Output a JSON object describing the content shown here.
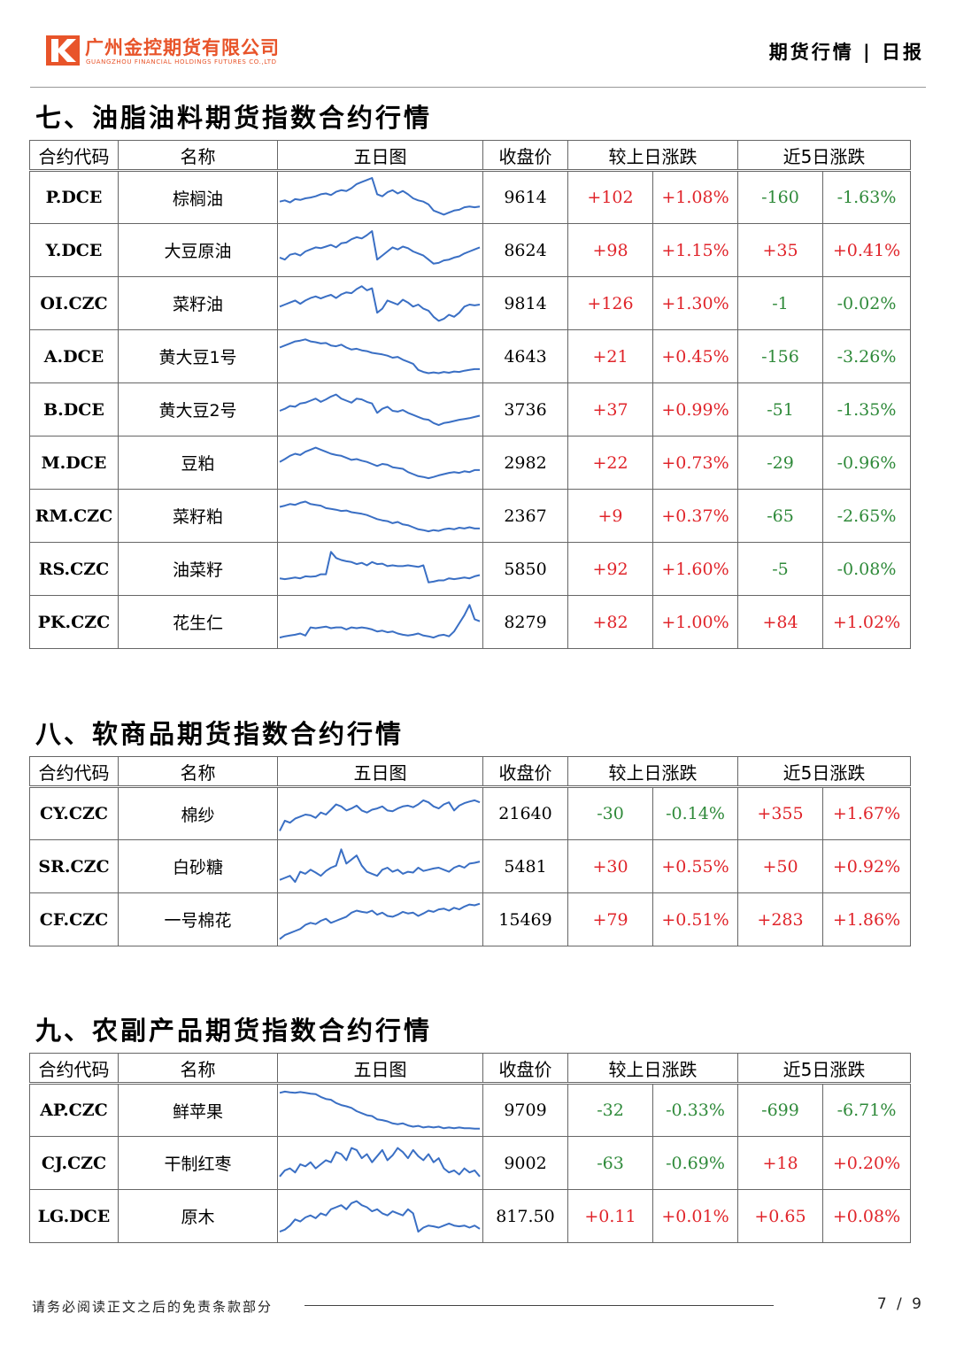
{
  "header": {
    "company_cn": "广州金控期货有限公司",
    "company_en": "GUANGZHOU FINANCIAL HOLDINGS FUTURES CO.,LTD",
    "doc_type": "期货行情 | 日报"
  },
  "columns": {
    "code": "合约代码",
    "name": "名称",
    "chart": "五日图",
    "close": "收盘价",
    "day_change": "较上日涨跌",
    "five_day_change": "近5日涨跌"
  },
  "sections": [
    {
      "title": "七、油脂油料期货指数合约行情",
      "rows": [
        {
          "code": "P.DCE",
          "name": "棕榈油",
          "close": "9614",
          "chg": "+102",
          "chg_pct": "+1.08%",
          "chg5": "-160",
          "chg5_pct": "-1.63%",
          "spark": [
            0.42,
            0.45,
            0.4,
            0.48,
            0.46,
            0.5,
            0.52,
            0.55,
            0.6,
            0.62,
            0.58,
            0.66,
            0.7,
            0.68,
            0.75,
            0.85,
            0.9,
            0.95,
            1.0,
            0.6,
            0.55,
            0.65,
            0.7,
            0.62,
            0.68,
            0.6,
            0.5,
            0.45,
            0.42,
            0.35,
            0.2,
            0.15,
            0.1,
            0.15,
            0.2,
            0.22,
            0.28,
            0.3,
            0.28,
            0.3
          ]
        },
        {
          "code": "Y.DCE",
          "name": "大豆原油",
          "close": "8624",
          "chg": "+98",
          "chg_pct": "+1.15%",
          "chg5": "+35",
          "chg5_pct": "+0.41%",
          "spark": [
            0.35,
            0.3,
            0.42,
            0.45,
            0.4,
            0.5,
            0.55,
            0.6,
            0.58,
            0.62,
            0.66,
            0.6,
            0.7,
            0.72,
            0.8,
            0.85,
            0.82,
            0.9,
            1.0,
            0.3,
            0.4,
            0.5,
            0.6,
            0.55,
            0.62,
            0.58,
            0.5,
            0.45,
            0.4,
            0.3,
            0.2,
            0.22,
            0.28,
            0.3,
            0.35,
            0.38,
            0.45,
            0.5,
            0.55,
            0.6
          ]
        },
        {
          "code": "OI.CZC",
          "name": "菜籽油",
          "close": "9814",
          "chg": "+126",
          "chg_pct": "+1.30%",
          "chg5": "-1",
          "chg5_pct": "-0.02%",
          "spark": [
            0.45,
            0.5,
            0.55,
            0.6,
            0.52,
            0.6,
            0.66,
            0.7,
            0.65,
            0.7,
            0.74,
            0.66,
            0.75,
            0.8,
            0.78,
            0.88,
            0.95,
            0.85,
            0.9,
            0.3,
            0.4,
            0.6,
            0.55,
            0.5,
            0.62,
            0.55,
            0.45,
            0.5,
            0.4,
            0.35,
            0.2,
            0.1,
            0.15,
            0.25,
            0.2,
            0.3,
            0.45,
            0.5,
            0.48,
            0.5
          ]
        },
        {
          "code": "A.DCE",
          "name": "黄大豆1号",
          "close": "4643",
          "chg": "+21",
          "chg_pct": "+0.45%",
          "chg5": "-156",
          "chg5_pct": "-3.26%",
          "spark": [
            0.75,
            0.8,
            0.85,
            0.9,
            0.92,
            0.95,
            0.9,
            0.88,
            0.85,
            0.86,
            0.8,
            0.78,
            0.82,
            0.75,
            0.7,
            0.72,
            0.68,
            0.66,
            0.62,
            0.6,
            0.58,
            0.55,
            0.5,
            0.52,
            0.45,
            0.4,
            0.35,
            0.2,
            0.15,
            0.12,
            0.14,
            0.12,
            0.15,
            0.13,
            0.16,
            0.15,
            0.18,
            0.2,
            0.22,
            0.22
          ]
        },
        {
          "code": "B.DCE",
          "name": "黄大豆2号",
          "close": "3736",
          "chg": "+37",
          "chg_pct": "+0.99%",
          "chg5": "-51",
          "chg5_pct": "-1.35%",
          "spark": [
            0.5,
            0.55,
            0.62,
            0.6,
            0.68,
            0.7,
            0.75,
            0.8,
            0.72,
            0.78,
            0.85,
            0.9,
            0.8,
            0.75,
            0.7,
            0.8,
            0.78,
            0.72,
            0.68,
            0.45,
            0.55,
            0.6,
            0.5,
            0.48,
            0.52,
            0.45,
            0.4,
            0.35,
            0.3,
            0.28,
            0.2,
            0.15,
            0.2,
            0.22,
            0.25,
            0.28,
            0.3,
            0.32,
            0.35,
            0.38
          ]
        },
        {
          "code": "M.DCE",
          "name": "豆粕",
          "close": "2982",
          "chg": "+22",
          "chg_pct": "+0.73%",
          "chg5": "-29",
          "chg5_pct": "-0.96%",
          "spark": [
            0.55,
            0.62,
            0.7,
            0.75,
            0.72,
            0.8,
            0.85,
            0.9,
            0.85,
            0.8,
            0.75,
            0.72,
            0.7,
            0.65,
            0.6,
            0.62,
            0.58,
            0.55,
            0.5,
            0.45,
            0.5,
            0.48,
            0.42,
            0.4,
            0.38,
            0.3,
            0.25,
            0.2,
            0.18,
            0.15,
            0.18,
            0.22,
            0.25,
            0.28,
            0.3,
            0.28,
            0.32,
            0.3,
            0.35,
            0.35
          ]
        },
        {
          "code": "RM.CZC",
          "name": "菜籽粕",
          "close": "2367",
          "chg": "+9",
          "chg_pct": "+0.37%",
          "chg5": "-65",
          "chg5_pct": "-2.65%",
          "spark": [
            0.75,
            0.78,
            0.82,
            0.8,
            0.85,
            0.88,
            0.82,
            0.8,
            0.78,
            0.72,
            0.7,
            0.68,
            0.65,
            0.66,
            0.62,
            0.6,
            0.58,
            0.55,
            0.5,
            0.45,
            0.42,
            0.4,
            0.35,
            0.38,
            0.32,
            0.3,
            0.25,
            0.2,
            0.18,
            0.15,
            0.18,
            0.16,
            0.2,
            0.22,
            0.2,
            0.24,
            0.22,
            0.25,
            0.22,
            0.22
          ]
        },
        {
          "code": "RS.CZC",
          "name": "油菜籽",
          "close": "5850",
          "chg": "+92",
          "chg_pct": "+1.60%",
          "chg5": "-5",
          "chg5_pct": "-0.08%",
          "spark": [
            0.3,
            0.28,
            0.3,
            0.32,
            0.3,
            0.35,
            0.34,
            0.35,
            0.4,
            0.4,
            0.95,
            0.8,
            0.75,
            0.72,
            0.7,
            0.65,
            0.68,
            0.62,
            0.7,
            0.65,
            0.66,
            0.6,
            0.62,
            0.6,
            0.6,
            0.62,
            0.6,
            0.58,
            0.62,
            0.2,
            0.22,
            0.25,
            0.25,
            0.3,
            0.28,
            0.3,
            0.32,
            0.3,
            0.35,
            0.38
          ]
        },
        {
          "code": "PK.CZC",
          "name": "花生仁",
          "close": "8279",
          "chg": "+82",
          "chg_pct": "+1.00%",
          "chg5": "+84",
          "chg5_pct": "+1.02%",
          "spark": [
            0.15,
            0.18,
            0.2,
            0.22,
            0.25,
            0.2,
            0.4,
            0.38,
            0.4,
            0.42,
            0.38,
            0.4,
            0.4,
            0.35,
            0.4,
            0.38,
            0.4,
            0.38,
            0.35,
            0.3,
            0.32,
            0.28,
            0.3,
            0.25,
            0.22,
            0.2,
            0.22,
            0.25,
            0.2,
            0.18,
            0.15,
            0.2,
            0.22,
            0.18,
            0.3,
            0.5,
            0.7,
            0.95,
            0.6,
            0.55
          ]
        }
      ]
    },
    {
      "title": "八、软商品期货指数合约行情",
      "rows": [
        {
          "code": "CY.CZC",
          "name": "棉纱",
          "close": "21640",
          "chg": "-30",
          "chg_pct": "-0.14%",
          "chg5": "+355",
          "chg5_pct": "+1.67%",
          "spark": [
            0.1,
            0.35,
            0.3,
            0.4,
            0.45,
            0.5,
            0.48,
            0.42,
            0.55,
            0.5,
            0.62,
            0.75,
            0.7,
            0.6,
            0.65,
            0.72,
            0.6,
            0.55,
            0.62,
            0.65,
            0.7,
            0.6,
            0.58,
            0.65,
            0.7,
            0.72,
            0.68,
            0.75,
            0.85,
            0.8,
            0.7,
            0.65,
            0.75,
            0.8,
            0.6,
            0.72,
            0.78,
            0.82,
            0.85,
            0.8
          ]
        },
        {
          "code": "SR.CZC",
          "name": "白砂糖",
          "close": "5481",
          "chg": "+30",
          "chg_pct": "+0.55%",
          "chg5": "+50",
          "chg5_pct": "+0.92%",
          "spark": [
            0.2,
            0.25,
            0.3,
            0.15,
            0.4,
            0.35,
            0.45,
            0.38,
            0.3,
            0.42,
            0.5,
            0.55,
            0.95,
            0.6,
            0.7,
            0.8,
            0.55,
            0.4,
            0.35,
            0.3,
            0.45,
            0.5,
            0.4,
            0.45,
            0.35,
            0.4,
            0.38,
            0.5,
            0.42,
            0.45,
            0.48,
            0.5,
            0.45,
            0.4,
            0.5,
            0.55,
            0.5,
            0.6,
            0.62,
            0.65
          ]
        },
        {
          "code": "CF.CZC",
          "name": "一号棉花",
          "close": "15469",
          "chg": "+79",
          "chg_pct": "+0.51%",
          "chg5": "+283",
          "chg5_pct": "+1.86%",
          "spark": [
            0.05,
            0.15,
            0.2,
            0.25,
            0.3,
            0.4,
            0.45,
            0.42,
            0.5,
            0.55,
            0.45,
            0.5,
            0.55,
            0.6,
            0.7,
            0.75,
            0.72,
            0.7,
            0.75,
            0.65,
            0.7,
            0.62,
            0.6,
            0.65,
            0.72,
            0.68,
            0.7,
            0.62,
            0.68,
            0.75,
            0.72,
            0.78,
            0.8,
            0.75,
            0.82,
            0.78,
            0.85,
            0.9,
            0.88,
            0.92
          ]
        }
      ]
    },
    {
      "title": "九、农副产品期货指数合约行情",
      "rows": [
        {
          "code": "AP.CZC",
          "name": "鲜苹果",
          "close": "9709",
          "chg": "-32",
          "chg_pct": "-0.33%",
          "chg5": "-699",
          "chg5_pct": "-6.71%",
          "spark": [
            0.95,
            0.98,
            0.96,
            0.95,
            0.97,
            0.95,
            0.93,
            0.92,
            0.85,
            0.8,
            0.78,
            0.7,
            0.65,
            0.62,
            0.58,
            0.5,
            0.45,
            0.4,
            0.38,
            0.3,
            0.28,
            0.25,
            0.2,
            0.18,
            0.2,
            0.15,
            0.12,
            0.14,
            0.1,
            0.12,
            0.1,
            0.12,
            0.08,
            0.1,
            0.08,
            0.1,
            0.08,
            0.08,
            0.07,
            0.07
          ]
        },
        {
          "code": "CJ.CZC",
          "name": "干制红枣",
          "close": "9002",
          "chg": "-63",
          "chg_pct": "-0.69%",
          "chg5": "+18",
          "chg5_pct": "+0.20%",
          "spark": [
            0.2,
            0.35,
            0.4,
            0.3,
            0.5,
            0.45,
            0.55,
            0.4,
            0.5,
            0.6,
            0.55,
            0.8,
            0.75,
            0.6,
            0.9,
            0.85,
            0.65,
            0.75,
            0.55,
            0.7,
            0.85,
            0.6,
            0.72,
            0.9,
            0.8,
            0.65,
            0.85,
            0.7,
            0.6,
            0.75,
            0.55,
            0.65,
            0.4,
            0.3,
            0.35,
            0.25,
            0.4,
            0.3,
            0.35,
            0.2
          ]
        },
        {
          "code": "LG.DCE",
          "name": "原木",
          "close": "817.50",
          "chg": "+0.11",
          "chg_pct": "+0.01%",
          "chg5": "+0.65",
          "chg5_pct": "+0.08%",
          "spark": [
            0.15,
            0.2,
            0.3,
            0.45,
            0.4,
            0.5,
            0.55,
            0.48,
            0.6,
            0.55,
            0.7,
            0.75,
            0.8,
            0.7,
            0.85,
            0.9,
            0.8,
            0.75,
            0.65,
            0.7,
            0.6,
            0.55,
            0.65,
            0.6,
            0.55,
            0.7,
            0.6,
            0.15,
            0.25,
            0.3,
            0.28,
            0.25,
            0.3,
            0.35,
            0.3,
            0.28,
            0.3,
            0.25,
            0.3,
            0.22
          ]
        }
      ]
    }
  ],
  "footer": {
    "disclaimer": "请务必阅读正文之后的免责条款部分",
    "page": "7 / 9"
  },
  "colors": {
    "up": "#e0242a",
    "down": "#2f8a3a",
    "spark": "#3a6fc4",
    "brand": "#e8542a"
  }
}
